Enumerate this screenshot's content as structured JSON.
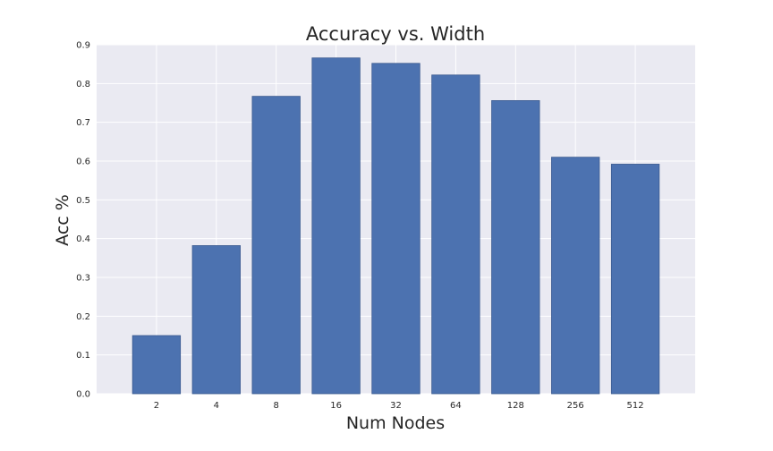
{
  "chart_data": {
    "type": "bar",
    "title": "Accuracy vs. Width",
    "xlabel": "Num Nodes",
    "ylabel": "Acc %",
    "categories": [
      "2",
      "4",
      "8",
      "16",
      "32",
      "64",
      "128",
      "256",
      "512"
    ],
    "values": [
      0.15,
      0.382,
      0.767,
      0.866,
      0.852,
      0.822,
      0.756,
      0.61,
      0.592
    ],
    "ylim": [
      0,
      0.9
    ],
    "yticks": [
      "0.0",
      "0.1",
      "0.2",
      "0.3",
      "0.4",
      "0.5",
      "0.6",
      "0.7",
      "0.8",
      "0.9"
    ],
    "grid": true,
    "colors": {
      "bar": "#4c72b0",
      "bar_edge": "#3b5a8f",
      "plot_background": "#eaeaf2",
      "grid": "#ffffff"
    }
  }
}
